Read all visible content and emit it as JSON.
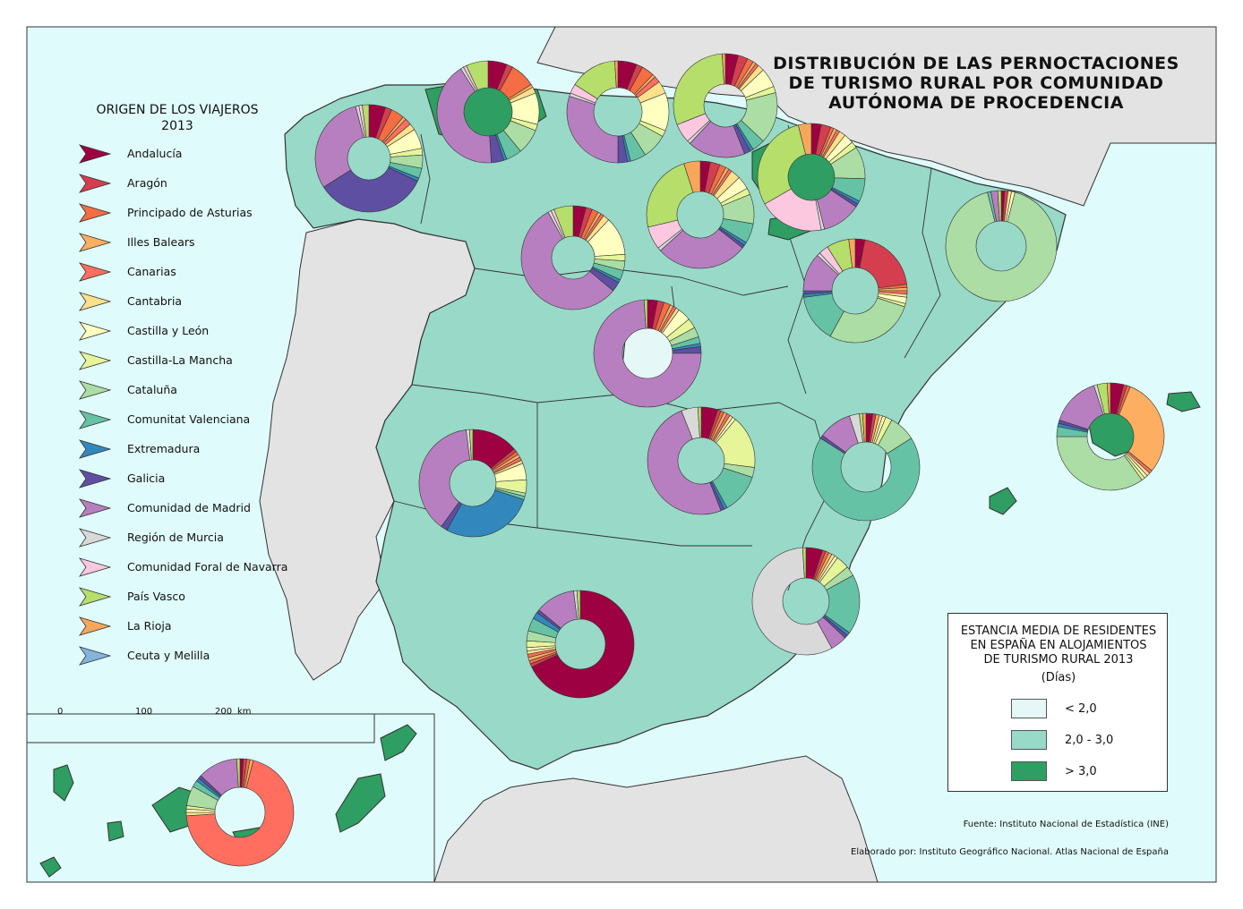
{
  "title_lines": [
    "DISTRIBUCIÓN DE LAS PERNOCTACIONES",
    "DE TURISMO RURAL POR COMUNIDAD",
    "AUTÓNOMA DE PROCEDENCIA"
  ],
  "legend": {
    "title_line1": "ORIGEN DE LOS VIAJEROS",
    "title_line2": "2013",
    "items": [
      {
        "label": "Andalucía",
        "color": "#9e0142"
      },
      {
        "label": "Aragón",
        "color": "#d53e4f"
      },
      {
        "label": "Principado de Asturias",
        "color": "#f46d43"
      },
      {
        "label": "Illes Balears",
        "color": "#fdae61"
      },
      {
        "label": "Canarias",
        "color": "#ff6e5e"
      },
      {
        "label": "Cantabria",
        "color": "#fee08b"
      },
      {
        "label": "Castilla y León",
        "color": "#ffffbf"
      },
      {
        "label": "Castilla-La Mancha",
        "color": "#e6f598"
      },
      {
        "label": "Cataluña",
        "color": "#abdda4"
      },
      {
        "label": "Comunitat Valenciana",
        "color": "#66c2a5"
      },
      {
        "label": "Extremadura",
        "color": "#3288bd"
      },
      {
        "label": "Galicia",
        "color": "#5e4fa2"
      },
      {
        "label": "Comunidad de Madrid",
        "color": "#b87fc0"
      },
      {
        "label": "Región de Murcia",
        "color": "#d9d9d9"
      },
      {
        "label": "Comunidad Foral de Navarra",
        "color": "#fbc8e0"
      },
      {
        "label": "País Vasco",
        "color": "#b5de6b"
      },
      {
        "label": "La Rioja",
        "color": "#f8a75a"
      },
      {
        "label": "Ceuta y Melilla",
        "color": "#84b4dc"
      }
    ]
  },
  "scale": {
    "labels": [
      "0",
      "100",
      "200",
      "km"
    ]
  },
  "stay_legend": {
    "title_lines": [
      "ESTANCIA MEDIA DE RESIDENTES",
      "EN ESPAÑA EN ALOJAMIENTOS",
      "DE TURISMO RURAL 2013"
    ],
    "unit": "(Días)",
    "classes": [
      {
        "label": "< 2,0",
        "color": "#e6f7f7"
      },
      {
        "label": "2,0 - 3,0",
        "color": "#98d9c8"
      },
      {
        "label": "> 3,0",
        "color": "#2e9e62"
      }
    ]
  },
  "colors": {
    "sea": "#e0fbfb",
    "neighbour": "#e3e3e3",
    "spain": "#98d9c8",
    "high": "#2e9e62",
    "low": "#e6f7f7"
  },
  "source": "Fuente: Instituto Nacional de Estadística (INE)",
  "credit": "Elaborado por: Instituto Geográfico Nacional. Atlas Nacional de España",
  "donuts": [
    {
      "region": "Galicia",
      "values": {
        "Andalucía": 5,
        "Aragón": 2,
        "Principado de Asturias": 4,
        "Illes Balears": 1,
        "Canarias": 2,
        "Cantabria": 2,
        "Castilla y León": 6,
        "Castilla-La Mancha": 2,
        "Cataluña": 4,
        "Comunitat Valenciana": 3,
        "Extremadura": 1,
        "Galicia": 34,
        "Comunidad de Madrid": 30,
        "Región de Murcia": 1,
        "Comunidad Foral de Navarra": 1,
        "País Vasco": 2
      }
    },
    {
      "region": "Principado de Asturias",
      "values": {
        "Andalucía": 6,
        "Aragón": 2,
        "Principado de Asturias": 8,
        "Illes Balears": 1,
        "Cantabria": 2,
        "Castilla y León": 10,
        "Castilla-La Mancha": 2,
        "Cataluña": 8,
        "Comunitat Valenciana": 5,
        "Extremadura": 1,
        "Galicia": 4,
        "Comunidad de Madrid": 42,
        "Región de Murcia": 1,
        "Comunidad Foral de Navarra": 1,
        "País Vasco": 7
      }
    },
    {
      "region": "Cantabria",
      "values": {
        "Andalucía": 6,
        "Aragón": 2,
        "Principado de Asturias": 4,
        "Illes Balears": 1,
        "Canarias": 2,
        "Cantabria": 4,
        "Castilla y León": 12,
        "Castilla-La Mancha": 2,
        "Cataluña": 8,
        "Comunitat Valenciana": 5,
        "Extremadura": 1,
        "Galicia": 3,
        "Comunidad de Madrid": 30,
        "Región de Murcia": 1,
        "Comunidad Foral de Navarra": 3,
        "País Vasco": 15,
        "La Rioja": 1
      }
    },
    {
      "region": "País Vasco",
      "values": {
        "Andalucía": 4,
        "Aragón": 3,
        "Principado de Asturias": 2,
        "Illes Balears": 1,
        "Canarias": 1,
        "Cantabria": 2,
        "Castilla y León": 6,
        "Castilla-La Mancha": 2,
        "Cataluña": 16,
        "Comunitat Valenciana": 4,
        "Extremadura": 1,
        "Galicia": 2,
        "Comunidad de Madrid": 18,
        "Región de Murcia": 1,
        "Comunidad Foral de Navarra": 6,
        "País Vasco": 30,
        "La Rioja": 1
      }
    },
    {
      "region": "Comunidad Foral de Navarra",
      "values": {
        "Andalucía": 3,
        "Aragón": 3,
        "Principado de Asturias": 1,
        "Illes Balears": 1,
        "Canarias": 1,
        "Cantabria": 2,
        "Castilla y León": 3,
        "Castilla-La Mancha": 2,
        "Cataluña": 10,
        "Comunitat Valenciana": 7,
        "Extremadura": 1,
        "Galicia": 1,
        "Comunidad de Madrid": 12,
        "Región de Murcia": 1,
        "Comunidad Foral de Navarra": 20,
        "País Vasco": 30,
        "La Rioja": 4
      }
    },
    {
      "region": "La Rioja",
      "values": {
        "Andalucía": 3,
        "Aragón": 3,
        "Principado de Asturias": 2,
        "Illes Balears": 1,
        "Canarias": 1,
        "Cantabria": 3,
        "Castilla y León": 4,
        "Castilla-La Mancha": 2,
        "Cataluña": 9,
        "Comunitat Valenciana": 6,
        "Extremadura": 1,
        "Galicia": 1,
        "Comunidad de Madrid": 28,
        "Región de Murcia": 1,
        "Comunidad Foral de Navarra": 7,
        "País Vasco": 24,
        "La Rioja": 5
      }
    },
    {
      "region": "Castilla y León",
      "values": {
        "Andalucía": 4,
        "Aragón": 2,
        "Principado de Asturias": 2,
        "Illes Balears": 1,
        "Canarias": 1,
        "Cantabria": 2,
        "Castilla y León": 12,
        "Castilla-La Mancha": 2,
        "Cataluña": 3,
        "Comunitat Valenciana": 3,
        "Extremadura": 1,
        "Galicia": 3,
        "Comunidad de Madrid": 56,
        "Región de Murcia": 1,
        "Comunidad Foral de Navarra": 1,
        "País Vasco": 6
      }
    },
    {
      "region": "Aragón",
      "values": {
        "Andalucía": 3,
        "Aragón": 20,
        "Principado de Asturias": 1,
        "Illes Balears": 1,
        "Canarias": 1,
        "Cantabria": 1,
        "Castilla y León": 2,
        "Castilla-La Mancha": 1,
        "Cataluña": 28,
        "Comunitat Valenciana": 15,
        "Extremadura": 1,
        "Galicia": 1,
        "Comunidad de Madrid": 12,
        "Región de Murcia": 1,
        "Comunidad Foral de Navarra": 3,
        "País Vasco": 7,
        "La Rioja": 2
      }
    },
    {
      "region": "Cataluña",
      "values": {
        "Andalucía": 1,
        "Aragón": 1,
        "Cantabria": 1,
        "Castilla y León": 1,
        "Cataluña": 92,
        "Comunitat Valenciana": 1,
        "Comunidad de Madrid": 2,
        "País Vasco": 1
      }
    },
    {
      "region": "Comunidad de Madrid",
      "values": {
        "Andalucía": 3,
        "Aragón": 2,
        "Principado de Asturias": 2,
        "Illes Balears": 1,
        "Canarias": 1,
        "Cantabria": 1,
        "Castilla y León": 4,
        "Castilla-La Mancha": 3,
        "Cataluña": 3,
        "Comunitat Valenciana": 2,
        "Extremadura": 1,
        "Galicia": 2,
        "Comunidad de Madrid": 74,
        "País Vasco": 1
      }
    },
    {
      "region": "Extremadura",
      "values": {
        "Andalucía": 14,
        "Aragón": 1,
        "Principado de Asturias": 1,
        "Illes Balears": 1,
        "Canarias": 1,
        "Cantabria": 1,
        "Castilla y León": 5,
        "Castilla-La Mancha": 4,
        "Cataluña": 1,
        "Comunitat Valenciana": 1,
        "Extremadura": 28,
        "Galicia": 2,
        "Comunidad de Madrid": 38,
        "Región de Murcia": 1,
        "País Vasco": 1
      }
    },
    {
      "region": "Castilla-La Mancha",
      "values": {
        "Andalucía": 5,
        "Aragón": 1,
        "Principado de Asturias": 1,
        "Illes Balears": 1,
        "Canarias": 1,
        "Cantabria": 1,
        "Castilla y León": 1,
        "Castilla-La Mancha": 16,
        "Cataluña": 3,
        "Comunitat Valenciana": 12,
        "Extremadura": 1,
        "Galicia": 1,
        "Comunidad de Madrid": 50,
        "Región de Murcia": 5,
        "País Vasco": 1
      }
    },
    {
      "region": "Comunitat Valenciana",
      "values": {
        "Andalucía": 2,
        "Aragón": 1,
        "Illes Balears": 1,
        "Cantabria": 1,
        "Castilla y León": 1,
        "Castilla-La Mancha": 2,
        "Cataluña": 8,
        "Comunitat Valenciana": 68,
        "Galicia": 1,
        "Comunidad de Madrid": 10,
        "Región de Murcia": 3,
        "País Vasco": 1,
        "La Rioja": 1
      }
    },
    {
      "region": "Illes Balears",
      "values": {
        "Andalucía": 4,
        "Aragón": 1,
        "Principado de Asturias": 1,
        "Illes Balears": 30,
        "Canarias": 1,
        "Cantabria": 1,
        "Castilla y León": 1,
        "Castilla-La Mancha": 1,
        "Cataluña": 35,
        "Comunitat Valenciana": 3,
        "Extremadura": 1,
        "Galicia": 1,
        "Comunidad de Madrid": 15,
        "Región de Murcia": 1,
        "País Vasco": 3,
        "La Rioja": 1
      }
    },
    {
      "region": "Región de Murcia",
      "values": {
        "Andalucía": 5,
        "Aragón": 1,
        "Principado de Asturias": 1,
        "Illes Balears": 1,
        "Cantabria": 1,
        "Castilla y León": 1,
        "Castilla-La Mancha": 4,
        "Cataluña": 3,
        "Comunitat Valenciana": 18,
        "Extremadura": 1,
        "Galicia": 1,
        "Comunidad de Madrid": 5,
        "Región de Murcia": 57,
        "País Vasco": 1
      }
    },
    {
      "region": "Andalucía",
      "values": {
        "Andalucía": 68,
        "Aragón": 1,
        "Principado de Asturias": 1,
        "Illes Balears": 1,
        "Canarias": 1,
        "Cantabria": 1,
        "Castilla y León": 1,
        "Castilla-La Mancha": 2,
        "Cataluña": 3,
        "Comunitat Valenciana": 4,
        "Extremadura": 2,
        "Galicia": 1,
        "Comunidad de Madrid": 12,
        "Región de Murcia": 1,
        "País Vasco": 1
      }
    },
    {
      "region": "Canarias",
      "values": {
        "Andalucía": 1,
        "Aragón": 1,
        "Principado de Asturias": 1,
        "Illes Balears": 1,
        "Canarias": 70,
        "Cantabria": 1,
        "Castilla y León": 1,
        "Castilla-La Mancha": 1,
        "Cataluña": 6,
        "Comunitat Valenciana": 2,
        "Extremadura": 1,
        "Galicia": 1,
        "Comunidad de Madrid": 12,
        "País Vasco": 1
      }
    }
  ]
}
